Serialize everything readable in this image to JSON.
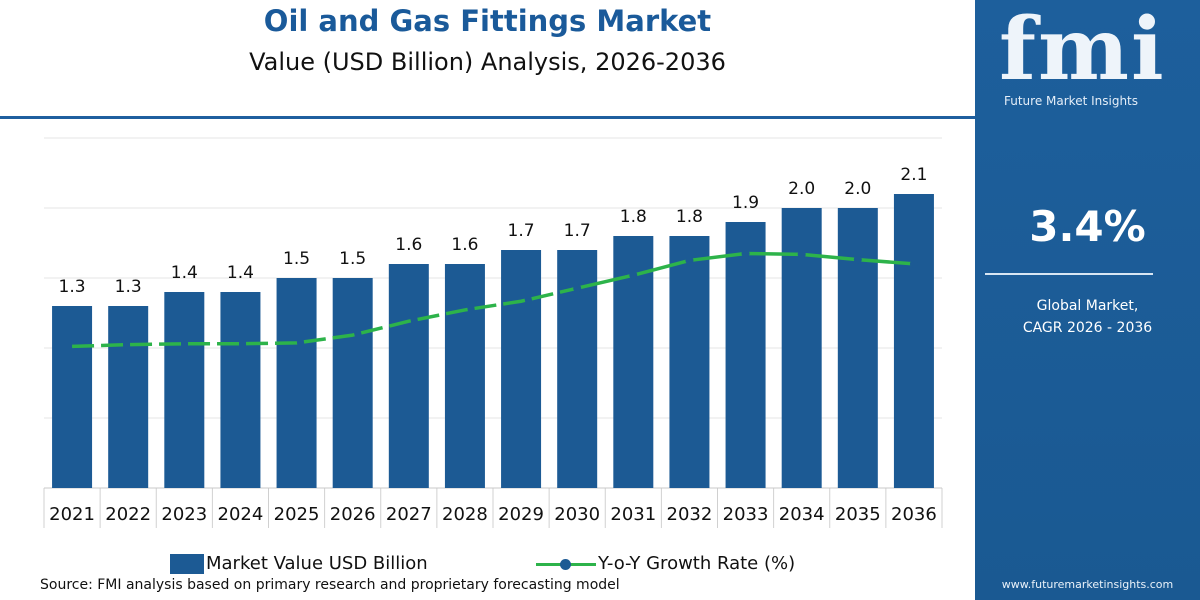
{
  "header": {
    "title": "Oil and Gas Fittings Market",
    "subtitle": "Value (USD Billion) Analysis, 2026-2036"
  },
  "sidebar": {
    "logo_text": "fmi",
    "logo_subtitle": "Future Market Insights",
    "cagr_value": "3.4%",
    "cagr_label_line1": "Global Market,",
    "cagr_label_line2": "CAGR 2026 - 2036",
    "website": "www.futuremarketinsights.com"
  },
  "legend": {
    "bar_label": "Market Value USD Billion",
    "line_label": "Y-o-Y Growth Rate (%)"
  },
  "source": "Source: FMI analysis based on primary research and proprietary forecasting model",
  "colors": {
    "bar": "#1c5a94",
    "line": "#2db34a",
    "marker": "#1c5a94",
    "title": "#1a5a9a",
    "sidebar": "#1d5f9c",
    "grid": "#e6e6e6"
  },
  "chart_data": {
    "type": "bar",
    "categories": [
      "2021",
      "2022",
      "2023",
      "2024",
      "2025",
      "2026",
      "2027",
      "2028",
      "2029",
      "2030",
      "2031",
      "2032",
      "2033",
      "2034",
      "2035",
      "2036"
    ],
    "series": [
      {
        "name": "Market Value USD Billion",
        "type": "bar",
        "values": [
          1.3,
          1.3,
          1.4,
          1.4,
          1.5,
          1.5,
          1.6,
          1.6,
          1.7,
          1.7,
          1.8,
          1.8,
          1.9,
          2.0,
          2.0,
          2.1
        ],
        "labels": [
          "1.3",
          "1.3",
          "1.4",
          "1.4",
          "1.5",
          "1.5",
          "1.6",
          "1.6",
          "1.7",
          "1.7",
          "1.8",
          "1.8",
          "1.9",
          "2.0",
          "2.0",
          "2.1"
        ]
      },
      {
        "name": "Y-o-Y Growth Rate (%)",
        "type": "line",
        "style_2021_2029": "dashed",
        "style_2030_2036": "solid with markers",
        "relative_values": [
          0.18,
          0.2,
          0.21,
          0.21,
          0.22,
          0.31,
          0.47,
          0.6,
          0.7,
          0.85,
          1.0,
          1.17,
          1.25,
          1.24,
          1.18,
          1.13
        ]
      }
    ],
    "ylim": [
      0,
      2.5
    ],
    "grid": true,
    "legend_position": "bottom"
  }
}
